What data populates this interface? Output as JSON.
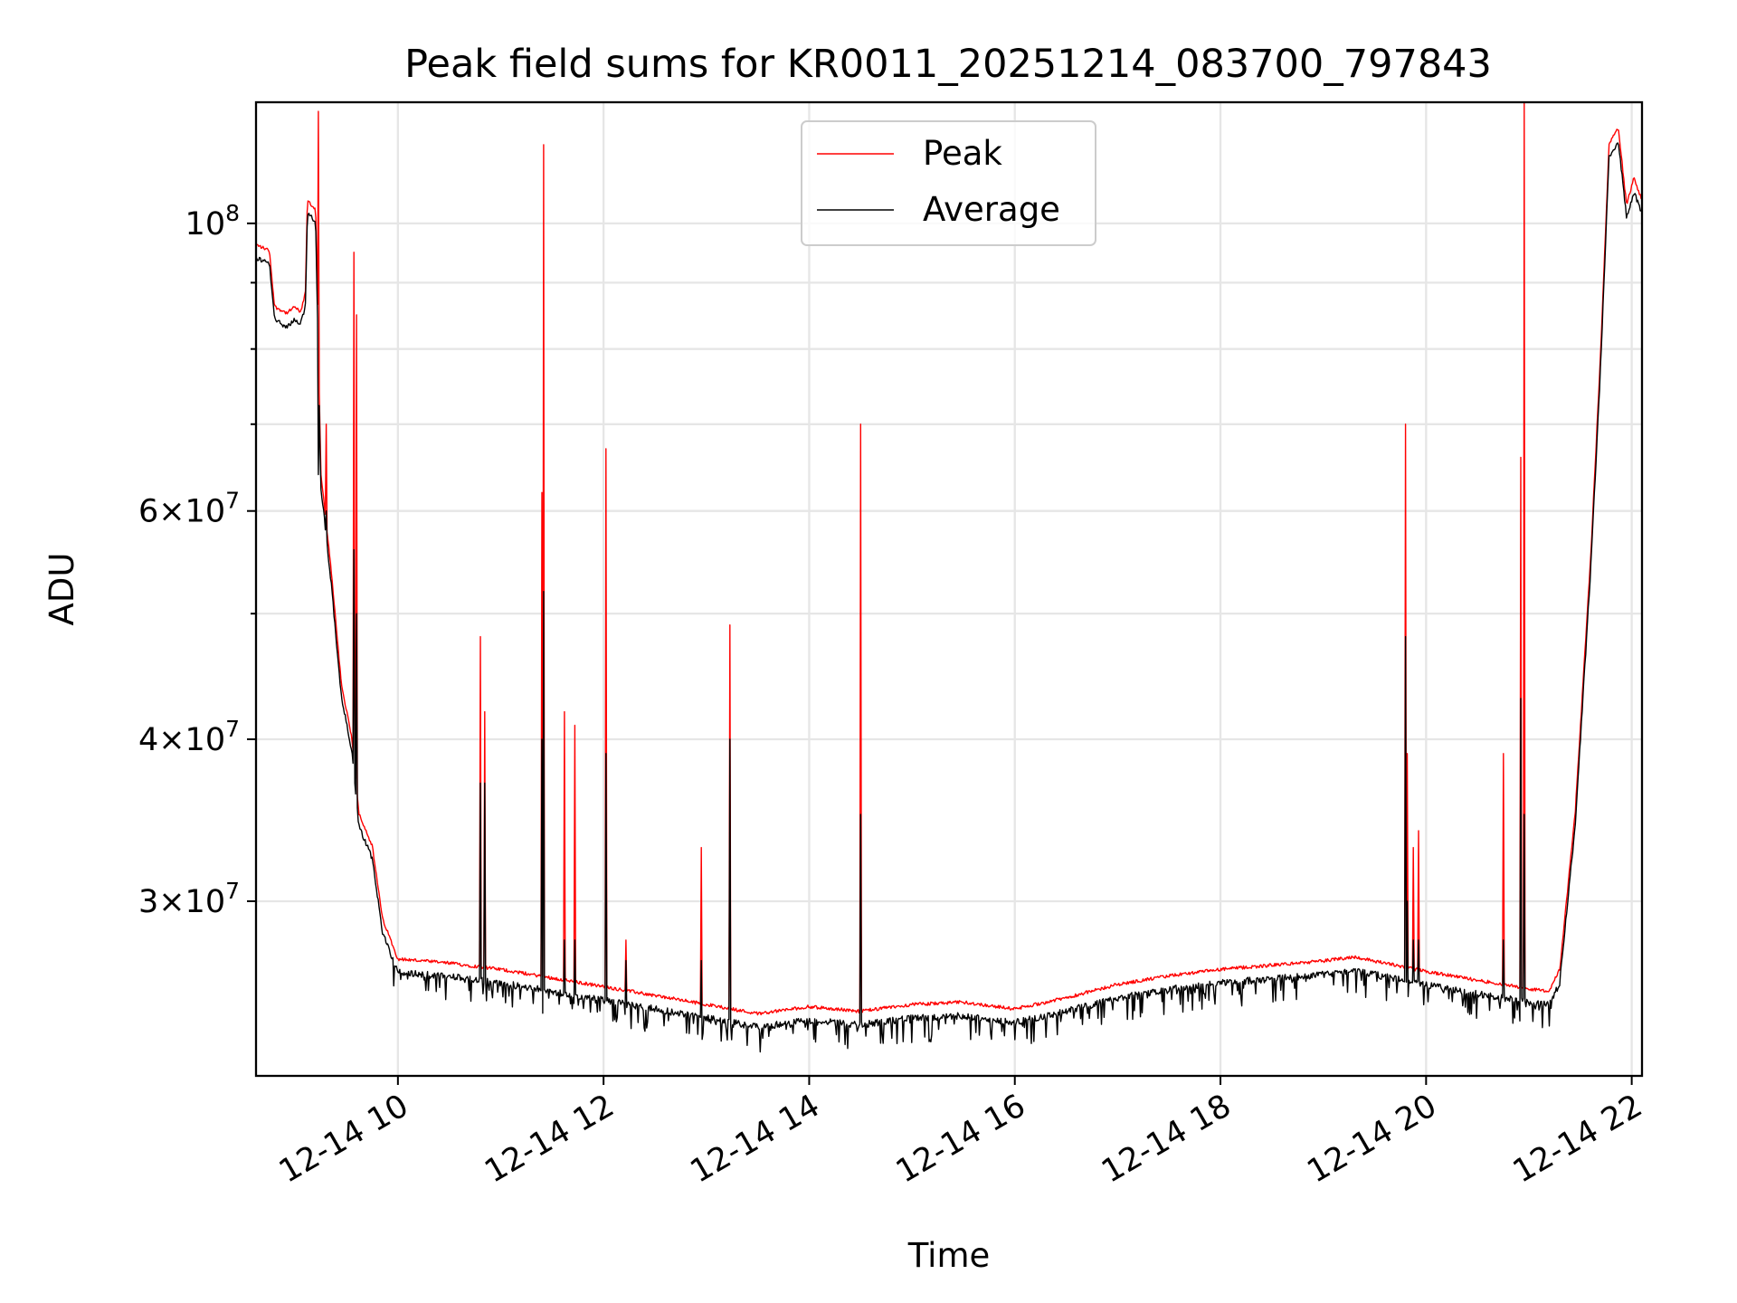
{
  "chart_data": {
    "type": "line",
    "title": "Peak field sums for KR0011_20251214_083700_797843",
    "xlabel": "Time",
    "ylabel": "ADU",
    "yscale": "log",
    "x_unit": "hours (2025-12-14)",
    "xlim": [
      8.62,
      22.1
    ],
    "ylim": [
      22000000,
      124000000
    ],
    "grid": true,
    "legend_position": "top-center",
    "x_ticks": [
      {
        "value": 10,
        "label": "12-14 10"
      },
      {
        "value": 12,
        "label": "12-14 12"
      },
      {
        "value": 14,
        "label": "12-14 14"
      },
      {
        "value": 16,
        "label": "12-14 16"
      },
      {
        "value": 18,
        "label": "12-14 18"
      },
      {
        "value": 20,
        "label": "12-14 20"
      },
      {
        "value": 22,
        "label": "12-14 22"
      }
    ],
    "y_ticks": [
      {
        "value": 30000000,
        "mantissa": "3",
        "exp": "7"
      },
      {
        "value": 40000000,
        "mantissa": "4",
        "exp": "7"
      },
      {
        "value": 60000000,
        "mantissa": "6",
        "exp": "7"
      },
      {
        "value": 100000000,
        "mantissa": "",
        "exp": "8"
      }
    ],
    "y_minor_ticks": [
      50000000,
      70000000,
      80000000,
      90000000
    ],
    "baseline": [
      [
        8.62,
        96000000
      ],
      [
        8.75,
        95000000
      ],
      [
        8.8,
        86000000
      ],
      [
        8.92,
        85000000
      ],
      [
        9.0,
        86000000
      ],
      [
        9.05,
        85000000
      ],
      [
        9.1,
        88000000
      ],
      [
        9.12,
        104000000
      ],
      [
        9.2,
        102000000
      ],
      [
        9.25,
        64000000
      ],
      [
        9.35,
        54000000
      ],
      [
        9.45,
        44000000
      ],
      [
        9.55,
        40000000
      ],
      [
        9.62,
        35000000
      ],
      [
        9.75,
        33000000
      ],
      [
        9.85,
        29000000
      ],
      [
        10.0,
        27000000
      ],
      [
        10.5,
        26800000
      ],
      [
        11.0,
        26500000
      ],
      [
        11.5,
        26100000
      ],
      [
        12.0,
        25700000
      ],
      [
        12.5,
        25300000
      ],
      [
        13.0,
        24900000
      ],
      [
        13.5,
        24500000
      ],
      [
        14.0,
        24800000
      ],
      [
        14.5,
        24600000
      ],
      [
        15.0,
        24900000
      ],
      [
        15.5,
        25000000
      ],
      [
        16.0,
        24700000
      ],
      [
        16.5,
        25200000
      ],
      [
        17.0,
        25800000
      ],
      [
        17.5,
        26200000
      ],
      [
        18.0,
        26500000
      ],
      [
        18.5,
        26700000
      ],
      [
        19.0,
        26900000
      ],
      [
        19.3,
        27100000
      ],
      [
        19.6,
        26800000
      ],
      [
        20.0,
        26400000
      ],
      [
        20.5,
        26000000
      ],
      [
        21.0,
        25600000
      ],
      [
        21.2,
        25500000
      ],
      [
        21.3,
        26500000
      ],
      [
        21.45,
        35000000
      ],
      [
        21.6,
        55000000
      ],
      [
        21.7,
        80000000
      ],
      [
        21.78,
        115000000
      ],
      [
        21.87,
        118000000
      ],
      [
        21.95,
        103000000
      ],
      [
        22.02,
        108000000
      ],
      [
        22.1,
        104000000
      ]
    ],
    "series": [
      {
        "name": "Peak",
        "color": "#ff0000"
      },
      {
        "name": "Average",
        "color": "#000000"
      }
    ],
    "peak_spikes": [
      {
        "x": 9.23,
        "peak": 122000000,
        "average": 64000000
      },
      {
        "x": 9.3,
        "peak": 70000000,
        "average": 60000000
      },
      {
        "x": 9.57,
        "peak": 95000000,
        "average": 56000000
      },
      {
        "x": 9.6,
        "peak": 85000000,
        "average": 50000000
      },
      {
        "x": 10.8,
        "peak": 48000000,
        "average": 37000000
      },
      {
        "x": 10.84,
        "peak": 42000000,
        "average": 37000000
      },
      {
        "x": 11.4,
        "peak": 62000000,
        "average": 40000000
      },
      {
        "x": 11.42,
        "peak": 115000000,
        "average": 52000000
      },
      {
        "x": 11.62,
        "peak": 42000000,
        "average": 28000000
      },
      {
        "x": 11.72,
        "peak": 41000000,
        "average": 28000000
      },
      {
        "x": 12.02,
        "peak": 67000000,
        "average": 39000000
      },
      {
        "x": 12.22,
        "peak": 28000000,
        "average": 27000000
      },
      {
        "x": 12.95,
        "peak": 33000000,
        "average": 27000000
      },
      {
        "x": 13.23,
        "peak": 49000000,
        "average": 40000000
      },
      {
        "x": 14.5,
        "peak": 70000000,
        "average": 35000000
      },
      {
        "x": 19.8,
        "peak": 70000000,
        "average": 48000000
      },
      {
        "x": 19.82,
        "peak": 39000000,
        "average": 30000000
      },
      {
        "x": 19.88,
        "peak": 33000000,
        "average": 28000000
      },
      {
        "x": 19.93,
        "peak": 34000000,
        "average": 28000000
      },
      {
        "x": 20.75,
        "peak": 39000000,
        "average": 28000000
      },
      {
        "x": 20.92,
        "peak": 66000000,
        "average": 43000000
      },
      {
        "x": 20.95,
        "peak": 124000000,
        "average": 35000000
      }
    ]
  }
}
